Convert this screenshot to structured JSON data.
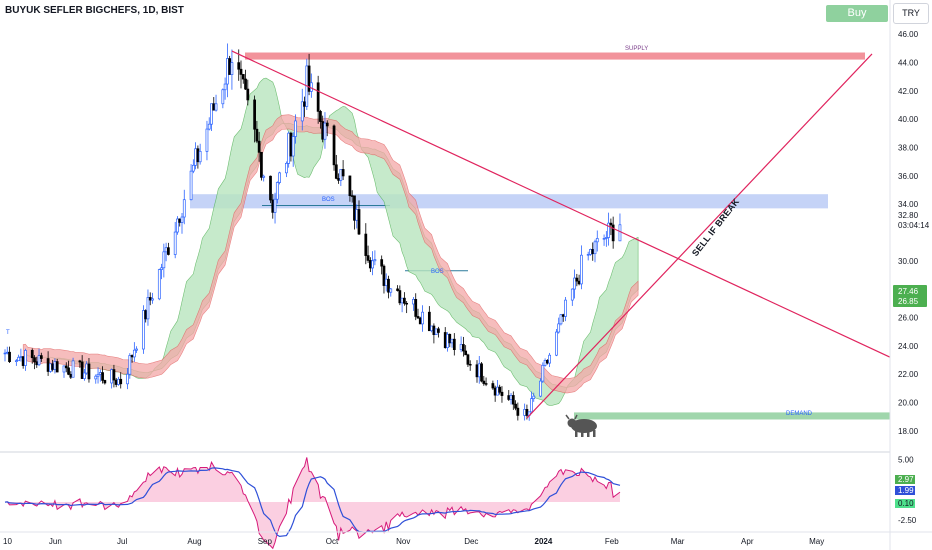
{
  "header": {
    "title": "BUYUK SEFLER BIGCHEFS, 1D, BIST",
    "buy_label": "Buy",
    "currency": "TRY"
  },
  "annotations": {
    "supply": "SUPPLY",
    "demand": "DEMAND",
    "bos_upper": "BOS",
    "bos_lower": "BOS",
    "sell_if_break": "SELL IF BREAK",
    "t_marker": "T"
  },
  "colors": {
    "up_candle": "#2962ff",
    "down_candle": "#000000",
    "supply_zone": "#f0808a",
    "demand_zone": "#8fcf9d",
    "bos_zone": "#b7c8f5",
    "trendline": "#e0245e",
    "cloud_red": "#f4a8a8",
    "cloud_green": "#b9e6bf",
    "osc_green": "#7be8c8",
    "osc_pink": "#f7a8c8",
    "osc_blue": "#2f50d8",
    "price_badge": "#4caf50"
  },
  "chart_data": {
    "type": "candlestick",
    "title": "BUYUK SEFLER BIGCHEFS, 1D, BIST",
    "currency": "TRY",
    "x_labels": [
      "10",
      "Jun",
      "Jul",
      "Aug",
      "Sep",
      "Oct",
      "Nov",
      "Dec",
      "2024",
      "Feb",
      "Mar",
      "Apr",
      "May"
    ],
    "y_ticks": [
      46.0,
      44.0,
      42.0,
      40.0,
      38.0,
      36.0,
      34.0,
      32.8,
      30.0,
      28.0,
      26.0,
      24.0,
      22.0,
      20.0,
      18.0
    ],
    "ylim": [
      17.0,
      46.5
    ],
    "price_labels": {
      "last": "32.80",
      "countdown": "03:04:14",
      "cloud_upper": "27.46",
      "cloud_lower": "26.85"
    },
    "zones": [
      {
        "name": "SUPPLY",
        "low": 44.2,
        "high": 44.7
      },
      {
        "name": "BOS",
        "low": 33.7,
        "high": 34.7
      },
      {
        "name": "DEMAND",
        "low": 18.8,
        "high": 19.3
      }
    ],
    "key_points": [
      {
        "date": "2023-05-10",
        "close": 23.5
      },
      {
        "date": "2023-07-01",
        "close": 21.5
      },
      {
        "date": "2023-08-18",
        "close": 44.6
      },
      {
        "date": "2023-09-05",
        "close": 34.0
      },
      {
        "date": "2023-09-20",
        "close": 42.5
      },
      {
        "date": "2023-10-20",
        "close": 29.5
      },
      {
        "date": "2023-12-26",
        "close": 18.9
      },
      {
        "date": "2024-01-20",
        "close": 30.0
      },
      {
        "date": "2024-02-05",
        "close": 32.8
      }
    ],
    "oscillator": {
      "y_ticks": [
        5.0,
        2.5,
        0.0,
        -2.5
      ],
      "ylim": [
        -3.5,
        5.5
      ],
      "labels": {
        "value1": "2.97",
        "value2": "1.99",
        "value3": "0.10",
        "low": "-2.50"
      }
    }
  }
}
